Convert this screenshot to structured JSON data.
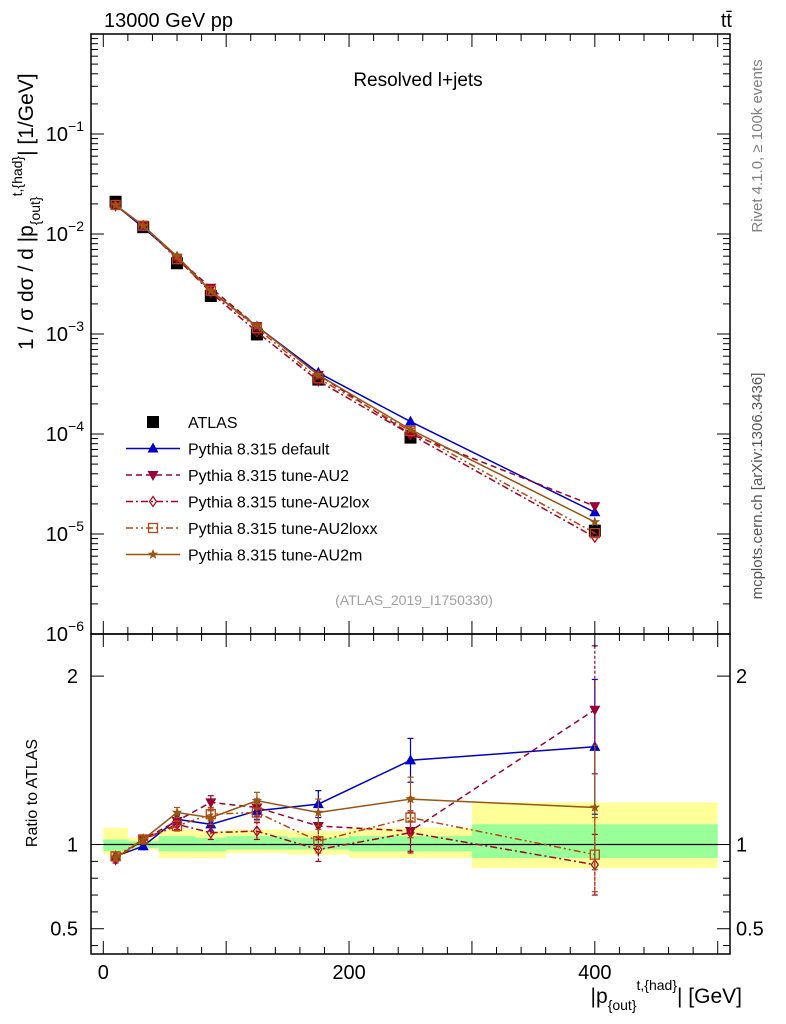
{
  "header": {
    "energy_label": "13000 GeV pp",
    "process_label": "tt̄"
  },
  "side_labels": {
    "rivet": "Rivet 4.1.0, ≥ 100k events",
    "source": "mcplots.cern.ch [arXiv:1306.3436]"
  },
  "chart_data": [
    {
      "type": "line",
      "panel": "main",
      "title": "Resolved l+jets",
      "analysis_label": "(ATLAS_2019_I1750330)",
      "ylabel_parts": [
        "1 / σ dσ / d |p",
        "{out}",
        "t,{had}",
        "| [1/GeV]"
      ],
      "yscale": "log",
      "ylim": [
        1e-06,
        1
      ],
      "xlim": [
        -10,
        510
      ],
      "y_tick_labels": [
        {
          "value": 1e-06,
          "base": "10",
          "exp": "−6"
        },
        {
          "value": 1e-05,
          "base": "10",
          "exp": "−5"
        },
        {
          "value": 0.0001,
          "base": "10",
          "exp": "−4"
        },
        {
          "value": 0.001,
          "base": "10",
          "exp": "−3"
        },
        {
          "value": 0.01,
          "base": "10",
          "exp": "−2"
        },
        {
          "value": 0.1,
          "base": "10",
          "exp": "−1"
        }
      ],
      "x": [
        10,
        32.5,
        60,
        87.5,
        125,
        175,
        250,
        400
      ],
      "series": [
        {
          "name": "ATLAS",
          "color": "#000000",
          "marker": "square",
          "line": "none",
          "values": [
            0.021,
            0.0117,
            0.0051,
            0.0024,
            0.00099,
            0.00035,
            9.2e-05,
            1.08e-05
          ]
        },
        {
          "name": "Pythia 8.315 default",
          "color": "#0000cc",
          "marker": "triangle-up",
          "line": "solid",
          "values": [
            0.0195,
            0.0116,
            0.0059,
            0.0027,
            0.00119,
            0.00041,
            0.000133,
            1.65e-05
          ]
        },
        {
          "name": "Pythia 8.315 tune-AU2",
          "color": "#990033",
          "marker": "triangle-down",
          "line": "dashed",
          "values": [
            0.0192,
            0.0121,
            0.0058,
            0.0029,
            0.0012,
            0.00039,
            0.0001,
            1.9e-05
          ]
        },
        {
          "name": "Pythia 8.315 tune-AU2lox",
          "color": "#aa0022",
          "marker": "diamond-open",
          "line": "dashdot",
          "values": [
            0.0193,
            0.0121,
            0.0057,
            0.0026,
            0.00105,
            0.00034,
            9.9e-05,
            9.3e-06
          ]
        },
        {
          "name": "Pythia 8.315 tune-AU2loxx",
          "color": "#bb4411",
          "marker": "square-open",
          "line": "dashdotdot",
          "values": [
            0.0195,
            0.0121,
            0.0056,
            0.0027,
            0.00114,
            0.00036,
            0.000107,
            1.02e-05
          ]
        },
        {
          "name": "Pythia 8.315 tune-AU2m",
          "color": "#995511",
          "marker": "star",
          "line": "solid",
          "values": [
            0.0195,
            0.0121,
            0.006,
            0.0027,
            0.0012,
            0.00039,
            0.000111,
            1.32e-05
          ]
        }
      ]
    },
    {
      "type": "line",
      "panel": "ratio",
      "ylabel": "Ratio to ATLAS",
      "xlabel_parts": [
        "|p",
        "{out}",
        "t,{had}",
        "| [GeV]"
      ],
      "ylim": [
        0.35,
        2.25
      ],
      "xlim": [
        -10,
        510
      ],
      "y_tick_labels": [
        "0.5",
        "1",
        "2"
      ],
      "x_tick_labels": [
        "0",
        "200",
        "400"
      ],
      "x": [
        10,
        32.5,
        60,
        87.5,
        125,
        175,
        250,
        400
      ],
      "bands": {
        "edges": [
          0,
          20,
          45,
          75,
          100,
          150,
          200,
          300,
          500
        ],
        "green_lo": [
          0.96,
          0.98,
          0.96,
          0.96,
          0.97,
          0.97,
          0.96,
          0.92
        ],
        "green_hi": [
          1.03,
          1.02,
          1.05,
          1.04,
          1.05,
          1.04,
          1.05,
          1.12
        ],
        "yellow_lo": [
          0.94,
          0.97,
          0.92,
          0.92,
          0.95,
          0.94,
          0.92,
          0.86
        ],
        "yellow_hi": [
          1.1,
          1.04,
          1.09,
          1.08,
          1.09,
          1.08,
          1.1,
          1.25
        ]
      },
      "series": [
        {
          "name": "Pythia 8.315 default",
          "color": "#0000cc",
          "marker": "triangle-up",
          "line": "solid",
          "values": [
            0.93,
            0.99,
            1.15,
            1.12,
            1.2,
            1.24,
            1.5,
            1.58
          ],
          "errors": [
            0.02,
            0.02,
            0.03,
            0.04,
            0.05,
            0.08,
            0.13,
            0.4
          ]
        },
        {
          "name": "Pythia 8.315 tune-AU2",
          "color": "#990033",
          "marker": "triangle-down",
          "line": "dashed",
          "values": [
            0.91,
            1.03,
            1.14,
            1.25,
            1.22,
            1.11,
            1.08,
            1.8
          ],
          "errors": [
            0.02,
            0.02,
            0.03,
            0.04,
            0.05,
            0.08,
            0.12,
            0.38
          ]
        },
        {
          "name": "Pythia 8.315 tune-AU2lox",
          "color": "#aa0022",
          "marker": "diamond-open",
          "line": "dashdot",
          "values": [
            0.92,
            1.03,
            1.12,
            1.07,
            1.08,
            0.97,
            1.07,
            0.88
          ],
          "errors": [
            0.02,
            0.02,
            0.03,
            0.04,
            0.05,
            0.07,
            0.12,
            0.18
          ]
        },
        {
          "name": "Pythia 8.315 tune-AU2loxx",
          "color": "#bb4411",
          "marker": "square-open",
          "line": "dashdotdot",
          "values": [
            0.93,
            1.03,
            1.11,
            1.18,
            1.19,
            1.02,
            1.16,
            0.94
          ],
          "errors": [
            0.02,
            0.02,
            0.03,
            0.04,
            0.05,
            0.07,
            0.12,
            0.22
          ]
        },
        {
          "name": "Pythia 8.315 tune-AU2m",
          "color": "#995511",
          "marker": "star",
          "line": "solid",
          "values": [
            0.92,
            1.03,
            1.19,
            1.16,
            1.26,
            1.19,
            1.27,
            1.22
          ],
          "errors": [
            0.02,
            0.02,
            0.03,
            0.04,
            0.05,
            0.08,
            0.13,
            0.37
          ]
        }
      ]
    }
  ]
}
